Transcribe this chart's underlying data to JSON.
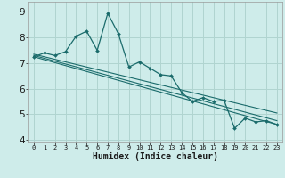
{
  "xlabel": "Humidex (Indice chaleur)",
  "bg_color": "#ceecea",
  "grid_color": "#b0d4d0",
  "line_color": "#1a6b6b",
  "x_ticks": [
    0,
    1,
    2,
    3,
    4,
    5,
    6,
    7,
    8,
    9,
    10,
    11,
    12,
    13,
    14,
    15,
    16,
    17,
    18,
    19,
    20,
    21,
    22,
    23
  ],
  "y_ticks": [
    4,
    5,
    6,
    7,
    8,
    9
  ],
  "xlim": [
    -0.5,
    23.5
  ],
  "ylim": [
    3.9,
    9.4
  ],
  "series1_x": [
    0,
    1,
    2,
    3,
    4,
    5,
    6,
    7,
    8,
    9,
    10,
    11,
    12,
    13,
    14,
    15,
    16,
    17,
    18,
    19,
    20,
    21,
    22,
    23
  ],
  "series1_y": [
    7.25,
    7.4,
    7.3,
    7.45,
    8.05,
    8.25,
    7.5,
    8.95,
    8.15,
    6.85,
    7.05,
    6.8,
    6.55,
    6.5,
    5.85,
    5.5,
    5.65,
    5.5,
    5.55,
    4.45,
    4.85,
    4.7,
    4.75,
    4.6
  ],
  "series2_x": [
    0,
    23
  ],
  "series2_y": [
    7.25,
    4.6
  ],
  "series3_x": [
    0,
    23
  ],
  "series3_y": [
    7.3,
    4.75
  ],
  "series4_x": [
    0,
    23
  ],
  "series4_y": [
    7.35,
    5.05
  ]
}
